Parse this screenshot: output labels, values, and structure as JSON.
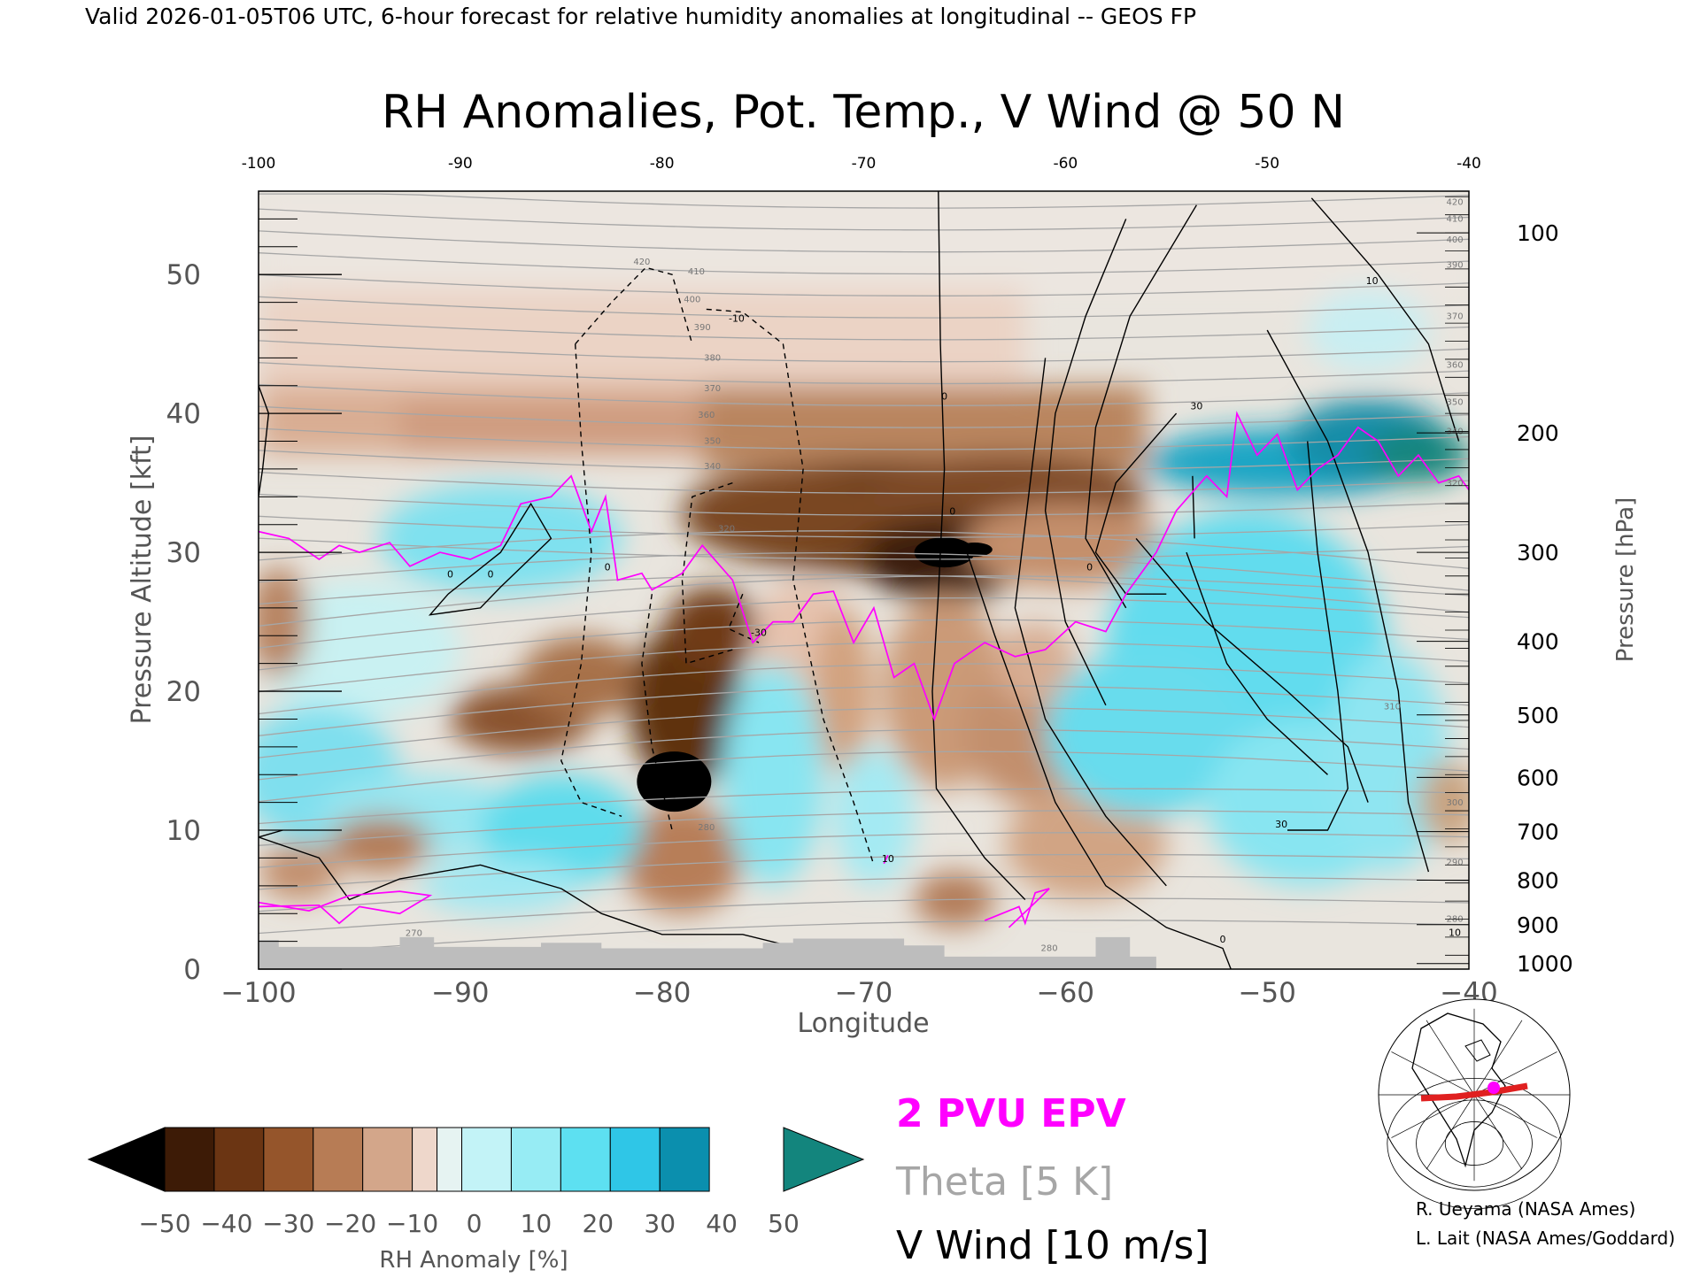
{
  "header": {
    "valid_line": "Valid 2026-01-05T06 UTC, 6-hour forecast for relative humidity anomalies at longitudinal -- GEOS FP"
  },
  "chart_data": {
    "type": "heatmap",
    "title": "RH Anomalies, Pot. Temp., V Wind @ 50 N",
    "xlabel": "Longitude",
    "ylabel_left": "Pressure Altitude [kft]",
    "ylabel_right": "Pressure [hPa]",
    "xlim": [
      -100,
      -40
    ],
    "ylim_kft": [
      0,
      56
    ],
    "x_ticks_bottom": [
      "−100",
      "−90",
      "−80",
      "−70",
      "−60",
      "−50",
      "−40"
    ],
    "x_ticks_top": [
      "-100",
      "-90",
      "-80",
      "-70",
      "-60",
      "-50",
      "-40"
    ],
    "y_ticks_left": [
      {
        "value": 0,
        "label": "0"
      },
      {
        "value": 10,
        "label": "10"
      },
      {
        "value": 20,
        "label": "20"
      },
      {
        "value": 30,
        "label": "30"
      },
      {
        "value": 40,
        "label": "40"
      },
      {
        "value": 50,
        "label": "50"
      }
    ],
    "y_ticks_right": [
      {
        "kft": 53.0,
        "label": "100"
      },
      {
        "kft": 38.6,
        "label": "200"
      },
      {
        "kft": 30.0,
        "label": "300"
      },
      {
        "kft": 23.6,
        "label": "400"
      },
      {
        "kft": 18.3,
        "label": "500"
      },
      {
        "kft": 13.8,
        "label": "600"
      },
      {
        "kft": 9.9,
        "label": "700"
      },
      {
        "kft": 6.4,
        "label": "800"
      },
      {
        "kft": 3.2,
        "label": "900"
      },
      {
        "kft": 0.4,
        "label": "1000"
      }
    ],
    "theta_labels": [
      {
        "lon": -81,
        "kft": 50.7,
        "label": "420"
      },
      {
        "lon": -78.3,
        "kft": 50.0,
        "label": "410"
      },
      {
        "lon": -78.5,
        "kft": 48.0,
        "label": "400"
      },
      {
        "lon": -78,
        "kft": 46.0,
        "label": "390"
      },
      {
        "lon": -77.5,
        "kft": 43.8,
        "label": "380"
      },
      {
        "lon": -77.5,
        "kft": 41.6,
        "label": "370"
      },
      {
        "lon": -77.8,
        "kft": 39.7,
        "label": "360"
      },
      {
        "lon": -77.5,
        "kft": 37.8,
        "label": "350"
      },
      {
        "lon": -77.5,
        "kft": 36.0,
        "label": "340"
      },
      {
        "lon": -76.8,
        "kft": 31.5,
        "label": "320"
      },
      {
        "lon": -77.8,
        "kft": 10.0,
        "label": "280"
      },
      {
        "lon": -92.3,
        "kft": 2.4,
        "label": "270"
      },
      {
        "lon": -60.8,
        "kft": 1.3,
        "label": "280"
      },
      {
        "lon": -40.7,
        "kft": 55.0,
        "label": "420"
      },
      {
        "lon": -40.7,
        "kft": 53.8,
        "label": "410"
      },
      {
        "lon": -40.7,
        "kft": 52.3,
        "label": "400"
      },
      {
        "lon": -40.7,
        "kft": 50.5,
        "label": "390"
      },
      {
        "lon": -40.7,
        "kft": 46.8,
        "label": "370"
      },
      {
        "lon": -40.7,
        "kft": 43.3,
        "label": "360"
      },
      {
        "lon": -40.7,
        "kft": 40.6,
        "label": "350"
      },
      {
        "lon": -40.7,
        "kft": 38.5,
        "label": "340"
      },
      {
        "lon": -40.7,
        "kft": 34.8,
        "label": "320"
      },
      {
        "lon": -43.8,
        "kft": 18.7,
        "label": "310"
      },
      {
        "lon": -40.7,
        "kft": 11.8,
        "label": "300"
      },
      {
        "lon": -40.7,
        "kft": 7.5,
        "label": "290"
      },
      {
        "lon": -40.7,
        "kft": 3.4,
        "label": "280"
      }
    ],
    "wind_labels": [
      {
        "lon": -66,
        "kft": 41.0,
        "label": "0"
      },
      {
        "lon": -65.6,
        "kft": 32.7,
        "label": "0"
      },
      {
        "lon": -53.5,
        "kft": 40.3,
        "label": "30"
      },
      {
        "lon": -44.8,
        "kft": 49.3,
        "label": "10"
      },
      {
        "lon": -58.8,
        "kft": 28.7,
        "label": "0"
      },
      {
        "lon": -90.5,
        "kft": 28.2,
        "label": "0"
      },
      {
        "lon": -88.5,
        "kft": 28.2,
        "label": "0"
      },
      {
        "lon": -82.7,
        "kft": 28.7,
        "label": "0"
      },
      {
        "lon": -76.3,
        "kft": 46.6,
        "label": "-10"
      },
      {
        "lon": -75.2,
        "kft": 24.0,
        "label": "-30"
      },
      {
        "lon": -68.8,
        "kft": 7.7,
        "label": "10"
      },
      {
        "lon": -49.3,
        "kft": 10.2,
        "label": "30"
      },
      {
        "lon": -40.7,
        "kft": 2.4,
        "label": "10"
      },
      {
        "lon": -52.2,
        "kft": 1.9,
        "label": "0"
      }
    ],
    "rh_colorbar": {
      "ticks": [
        "−50",
        "−40",
        "−30",
        "−20",
        "−10",
        "0",
        "10",
        "20",
        "30",
        "40",
        "50"
      ],
      "colors": [
        "#000000",
        "#3d1b06",
        "#6b3513",
        "#95552b",
        "#b77c55",
        "#d3a68a",
        "#eed7cb",
        "#e6f3f2",
        "#c3f3f7",
        "#97ecf4",
        "#5de0f1",
        "#2fc6e7",
        "#0b8fae",
        "#13857d"
      ],
      "label": "RH Anomaly [%]"
    },
    "legend": {
      "epv": "2 PVU EPV",
      "theta": "Theta [5 K]",
      "wind": "V Wind [10 m/s]"
    },
    "colors": {
      "epv": "#ff00ff",
      "theta": "#a6a6a6",
      "wind": "#000000",
      "terrain": "#bdbdbd",
      "transect": "#e02020"
    },
    "inset_map": {
      "icon": "globe-inset-map-icon"
    },
    "credits": [
      "R. Ueyama (NASA Ames)",
      "L. Lait (NASA Ames/Goddard)"
    ]
  }
}
